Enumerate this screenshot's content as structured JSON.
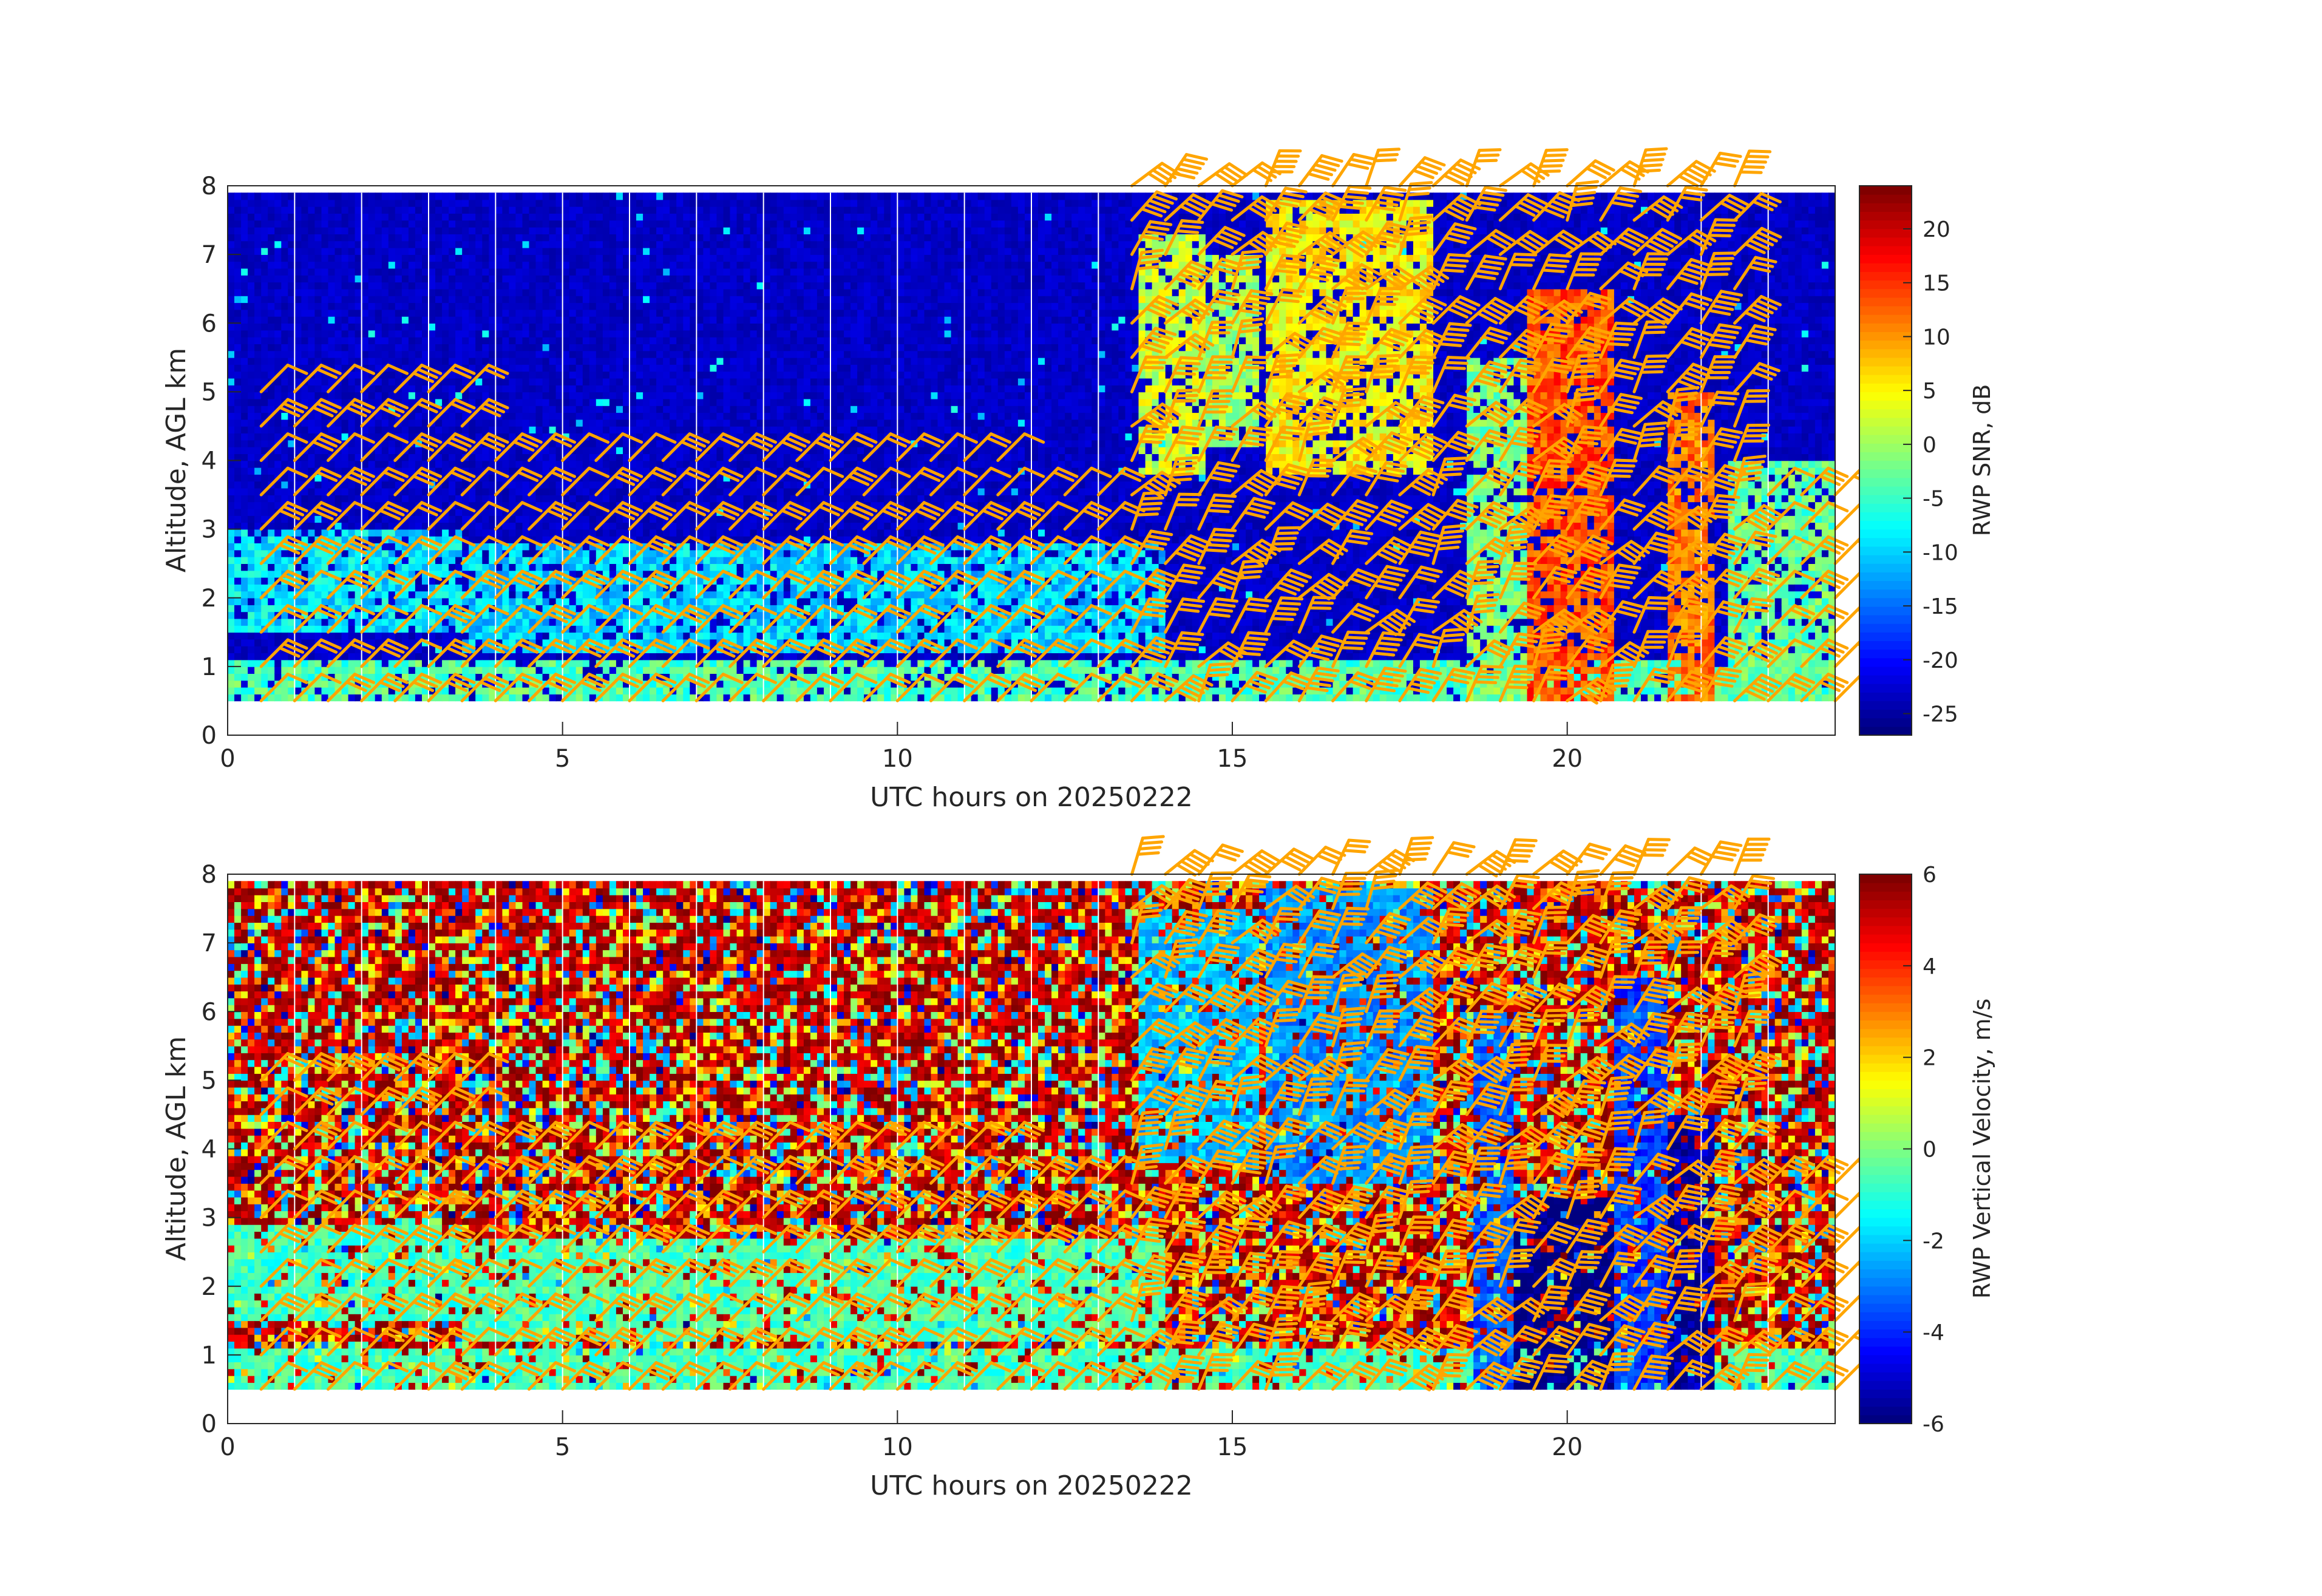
{
  "figure": {
    "background": "#ffffff",
    "barb_color": "#ffa500"
  },
  "chart_data": [
    {
      "type": "heatmap",
      "name": "snr-panel",
      "xlabel": "UTC hours on 20250222",
      "ylabel": "Altitude, AGL km",
      "xlim": [
        0,
        24
      ],
      "ylim": [
        0,
        8
      ],
      "xticks": [
        "0",
        "5",
        "10",
        "15",
        "20"
      ],
      "yticks": [
        "0",
        "1",
        "2",
        "3",
        "4",
        "5",
        "6",
        "7",
        "8"
      ],
      "data_range_y": [
        0.5,
        7.9
      ],
      "colorbar": {
        "label": "RWP SNR, dB",
        "clim": [
          -27,
          24
        ],
        "ticks": [
          "-25",
          "-20",
          "-15",
          "-10",
          "-5",
          "0",
          "5",
          "10",
          "15",
          "20"
        ],
        "colormap": "jet"
      },
      "features": [
        {
          "kind": "layer",
          "t0": 0.0,
          "t1": 24.0,
          "z0": 0.5,
          "z1": 1.1,
          "value": -4
        },
        {
          "kind": "layer",
          "t0": 0.0,
          "t1": 3.5,
          "z0": 1.5,
          "z1": 3.0,
          "value": -9
        },
        {
          "kind": "layer",
          "t0": 3.5,
          "t1": 14.0,
          "z0": 1.2,
          "z1": 2.8,
          "value": -10
        },
        {
          "kind": "column",
          "t0": 13.6,
          "t1": 14.6,
          "z0": 3.8,
          "z1": 7.3,
          "value": 2
        },
        {
          "kind": "column",
          "t0": 14.6,
          "t1": 15.4,
          "z0": 4.2,
          "z1": 7.0,
          "value": 0
        },
        {
          "kind": "column",
          "t0": 15.5,
          "t1": 18.0,
          "z0": 3.8,
          "z1": 7.8,
          "value": 5
        },
        {
          "kind": "column",
          "t0": 18.5,
          "t1": 19.4,
          "z0": 0.5,
          "z1": 5.5,
          "value": -2
        },
        {
          "kind": "column",
          "t0": 19.4,
          "t1": 20.7,
          "z0": 0.5,
          "z1": 6.5,
          "value": 14
        },
        {
          "kind": "column",
          "t0": 21.5,
          "t1": 22.2,
          "z0": 0.5,
          "z1": 5.0,
          "value": 12
        },
        {
          "kind": "column",
          "t0": 22.4,
          "t1": 24.0,
          "z0": 0.5,
          "z1": 4.0,
          "value": -3
        }
      ]
    },
    {
      "type": "heatmap",
      "name": "velocity-panel",
      "xlabel": "UTC hours on 20250222",
      "ylabel": "Altitude, AGL km",
      "xlim": [
        0,
        24
      ],
      "ylim": [
        0,
        8
      ],
      "xticks": [
        "0",
        "5",
        "10",
        "15",
        "20"
      ],
      "yticks": [
        "0",
        "1",
        "2",
        "3",
        "4",
        "5",
        "6",
        "7",
        "8"
      ],
      "data_range_y": [
        0.5,
        7.9
      ],
      "colorbar": {
        "label": "RWP Vertical Velocity, m/s",
        "clim": [
          -6,
          6
        ],
        "ticks": [
          "-6",
          "-4",
          "-2",
          "0",
          "2",
          "4",
          "6"
        ],
        "colormap": "jet"
      },
      "features": [
        {
          "kind": "layer",
          "t0": 0.0,
          "t1": 24.0,
          "z0": 0.5,
          "z1": 1.1,
          "value": -0.7
        },
        {
          "kind": "layer",
          "t0": 0.0,
          "t1": 3.5,
          "z0": 1.5,
          "z1": 2.9,
          "value": -0.8
        },
        {
          "kind": "layer",
          "t0": 3.5,
          "t1": 14.0,
          "z0": 1.2,
          "z1": 2.7,
          "value": -0.6
        },
        {
          "kind": "column",
          "t0": 13.6,
          "t1": 15.4,
          "z0": 3.8,
          "z1": 7.5,
          "value": -2.2
        },
        {
          "kind": "column",
          "t0": 15.5,
          "t1": 18.0,
          "z0": 3.5,
          "z1": 7.8,
          "value": -2.8
        },
        {
          "kind": "column",
          "t0": 18.6,
          "t1": 19.2,
          "z0": 0.5,
          "z1": 6.0,
          "value": -3.5
        },
        {
          "kind": "column",
          "t0": 19.2,
          "t1": 20.7,
          "z0": 0.5,
          "z1": 3.3,
          "value": -6.0
        },
        {
          "kind": "column",
          "t0": 20.7,
          "t1": 21.5,
          "z0": 0.5,
          "z1": 6.5,
          "value": -3.8
        },
        {
          "kind": "column",
          "t0": 21.5,
          "t1": 22.2,
          "z0": 0.5,
          "z1": 4.5,
          "value": -5.5
        }
      ]
    }
  ],
  "wind_barbs": {
    "times": [
      0.5,
      1.0,
      1.5,
      2.0,
      2.5,
      3.0,
      3.5,
      4.0,
      4.5,
      5.0,
      5.5,
      6.0,
      6.5,
      7.0,
      7.5,
      8.0,
      8.5,
      9.0,
      9.5,
      10.0,
      10.5,
      11.0,
      11.5,
      12.0,
      12.5,
      13.0,
      13.5,
      14.0,
      14.5,
      15.0,
      15.5,
      16.0,
      16.5,
      17.0,
      17.5,
      18.0,
      18.5,
      19.0,
      19.5,
      20.0,
      20.5,
      21.0,
      21.5,
      22.0,
      22.5,
      23.0,
      23.5,
      24.0
    ],
    "altitudes_km": [
      0.5,
      1.0,
      1.5,
      2.0,
      2.5,
      3.0,
      3.5,
      4.0,
      4.5,
      5.0,
      5.5,
      6.0,
      6.5,
      7.0,
      7.5,
      8.0
    ]
  }
}
